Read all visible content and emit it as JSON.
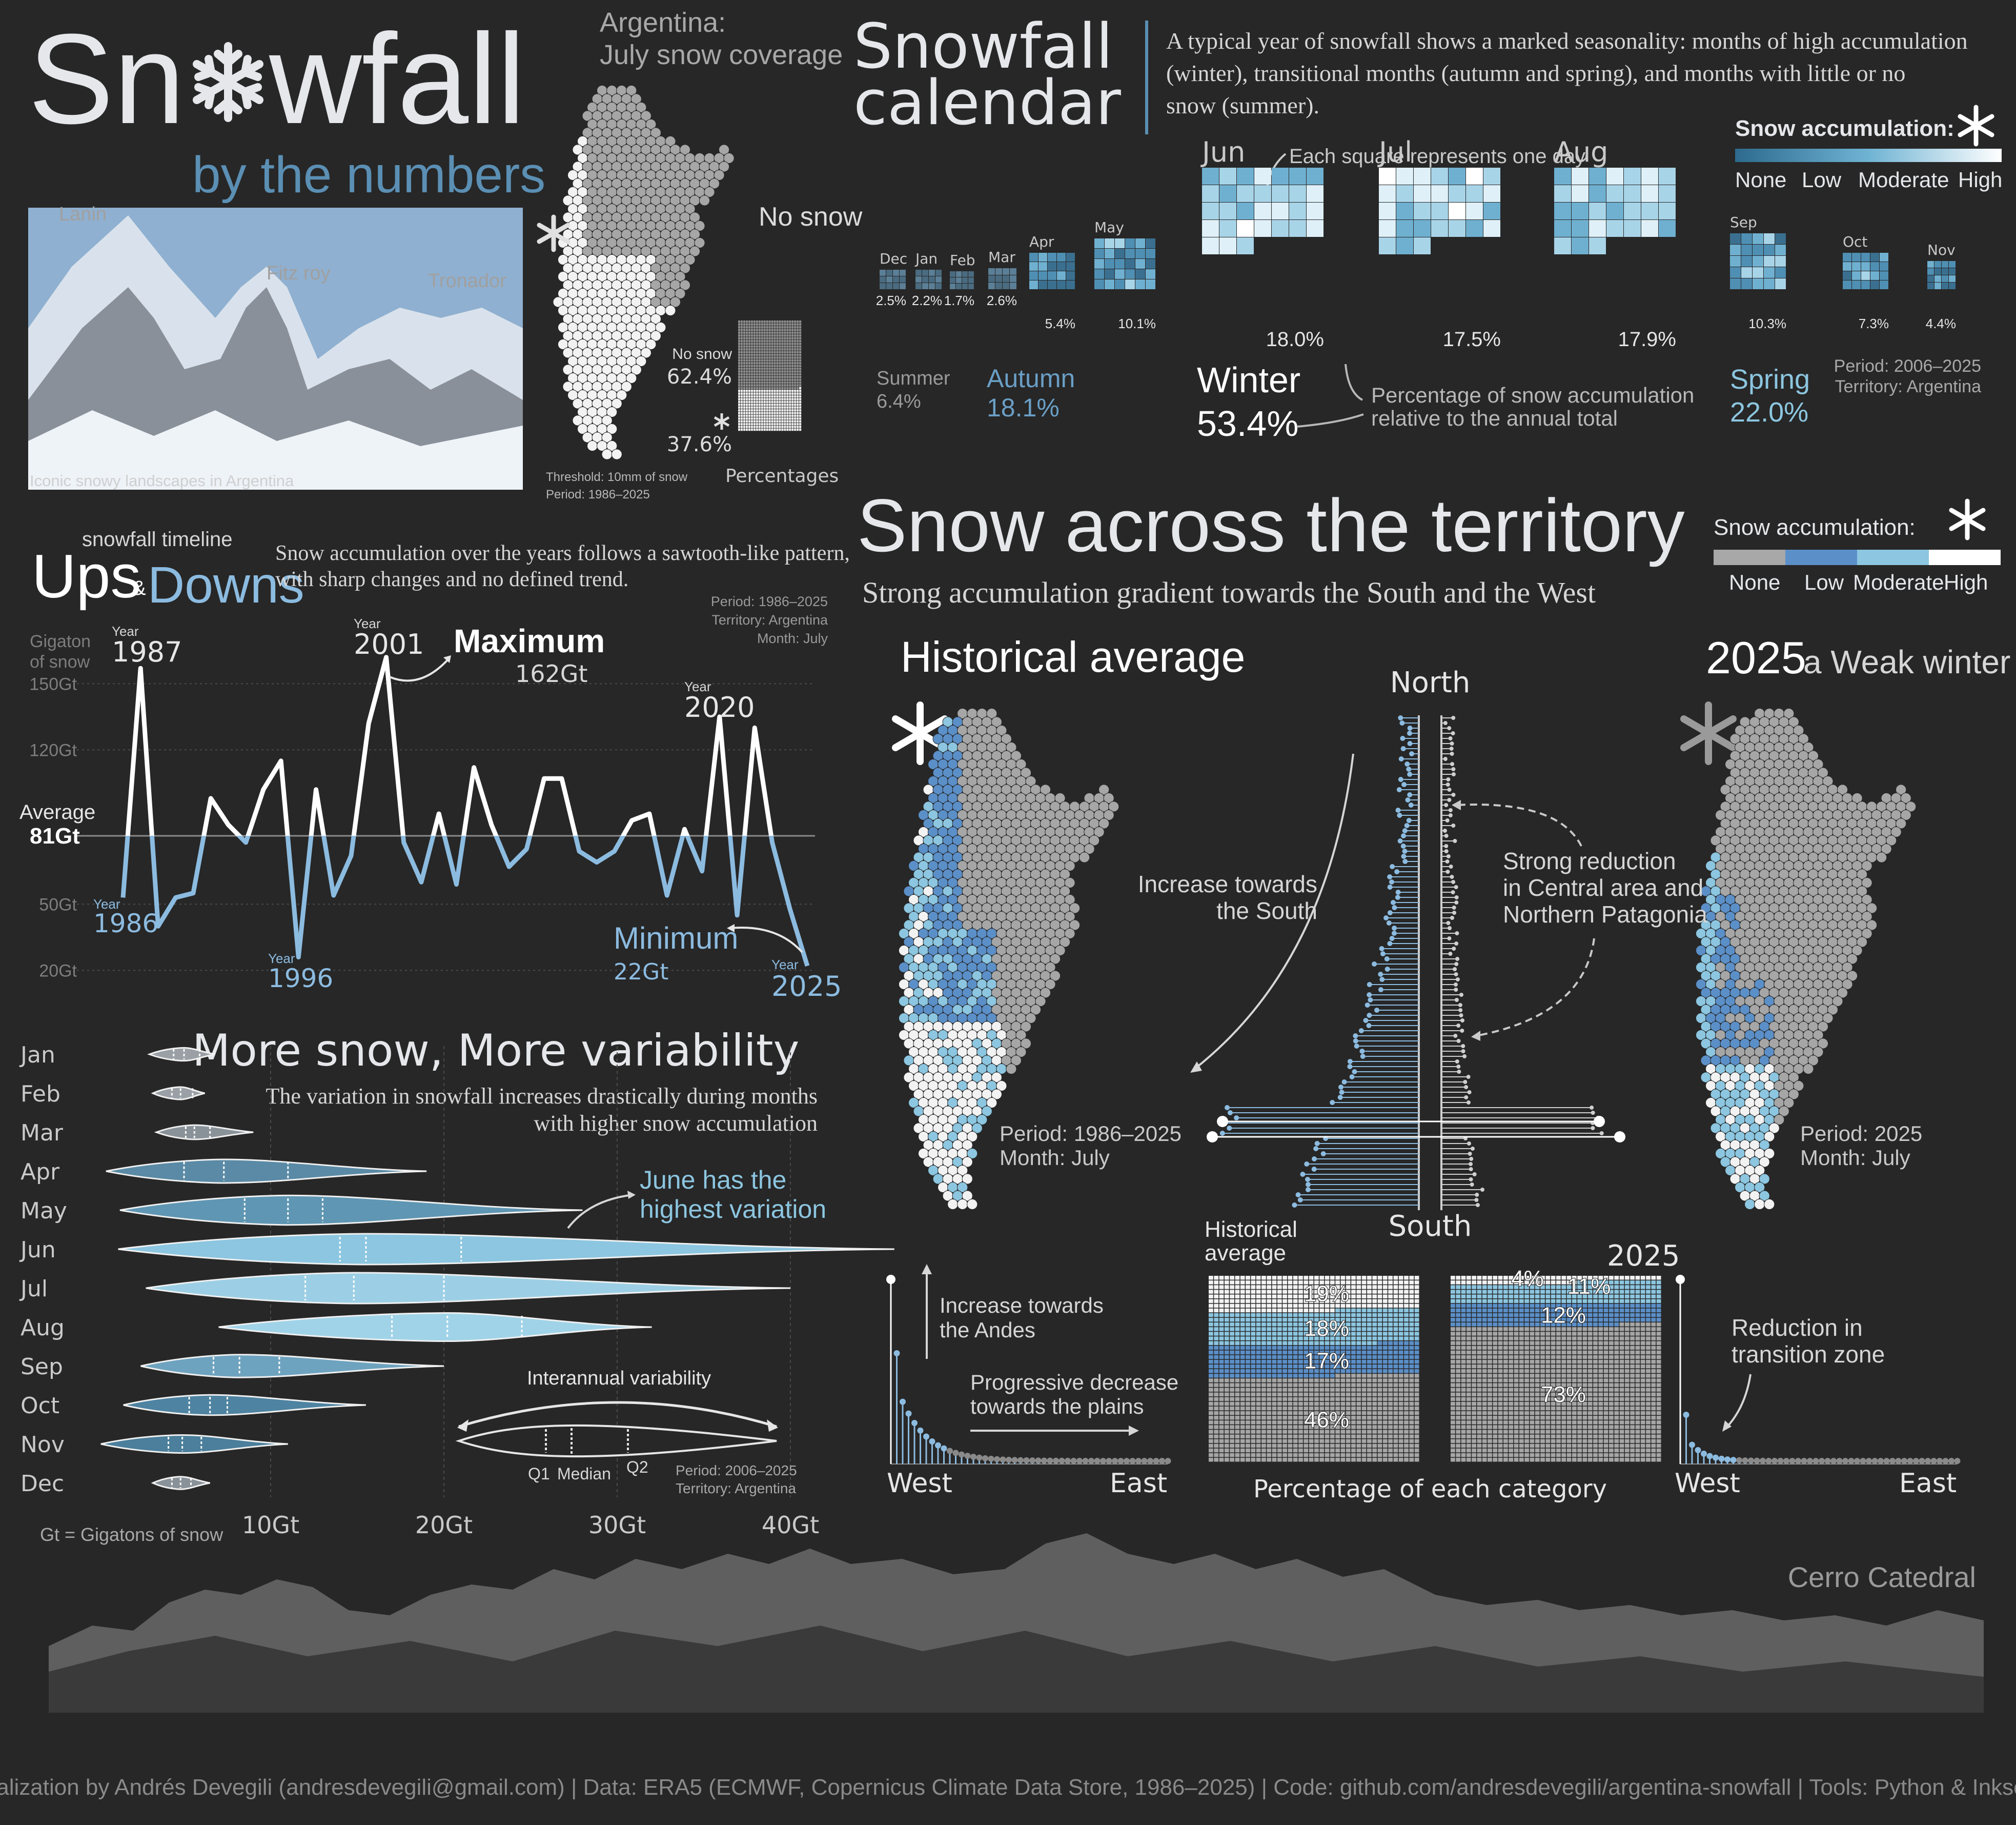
{
  "header": {
    "title_pre": "Sn",
    "title_post": "wfall",
    "subtitle": "by the numbers",
    "photo_labels": [
      "Lanin",
      "Fitz roy",
      "Tronador"
    ],
    "photo_caption": "Iconic snowy landscapes in Argentina"
  },
  "coverage": {
    "title_line1": "Argentina:",
    "title_line2": "July snow coverage",
    "no_snow_label": "No snow",
    "waffle_no_snow_label": "No snow",
    "no_snow_pct": "62.4%",
    "snow_pct": "37.6%",
    "waffle_caption": "Percentages",
    "threshold": "Threshold: 10mm of snow",
    "period": "Period: 1986–2025",
    "values": {
      "no_snow": 62.4,
      "snow": 37.6
    }
  },
  "calendar": {
    "title_line1": "Snowfall",
    "title_line2": "calendar",
    "description": [
      "A typical year of snowfall shows a marked seasonality: months of high accumulation",
      "(winter), transitional months (autumn and spring), and months with little or no",
      "snow (summer)."
    ],
    "legend_title": "Snow accumulation:",
    "legend_labels": [
      "None",
      "Low",
      "Moderate",
      "High"
    ],
    "square_note": "Each square represents one day",
    "months": [
      {
        "label": "Dec",
        "pct": "2.5%"
      },
      {
        "label": "Jan",
        "pct": "2.2%"
      },
      {
        "label": "Feb",
        "pct": "1.7%"
      },
      {
        "label": "Mar",
        "pct": "2.6%"
      },
      {
        "label": "Apr",
        "pct": "5.4%"
      },
      {
        "label": "May",
        "pct": "10.1%"
      },
      {
        "label": "Jun",
        "pct": "18.0%"
      },
      {
        "label": "Jul",
        "pct": "17.5%"
      },
      {
        "label": "Aug",
        "pct": "17.9%"
      },
      {
        "label": "Sep",
        "pct": "10.3%"
      },
      {
        "label": "Oct",
        "pct": "7.3%"
      },
      {
        "label": "Nov",
        "pct": "4.4%"
      }
    ],
    "seasons": [
      {
        "label": "Summer",
        "pct": "6.4%"
      },
      {
        "label": "Autumn",
        "pct": "18.1%"
      },
      {
        "label": "Winter",
        "pct": "53.4%"
      },
      {
        "label": "Spring",
        "pct": "22.0%"
      }
    ],
    "pct_note_line1": "Percentage of snow accumulation",
    "pct_note_line2": "relative to the annual total",
    "period": "Period: 2006–2025",
    "territory": "Territory: Argentina",
    "colors": {
      "none": "#b0b0b0",
      "low": "#3d7ea3",
      "moderate": "#8cc6e0",
      "high": "#ffffff"
    }
  },
  "timeline": {
    "kicker": "snowfall timeline",
    "title_a": "Ups",
    "amp": "&",
    "title_b": "Downs",
    "description": [
      "Snow accumulation over the years follows a sawtooth-like pattern,",
      "with sharp changes and no defined trend."
    ],
    "period": "Period: 1986–2025",
    "territory": "Territory: Argentina",
    "month": "Month: July",
    "ylabel_line1": "Gigaton",
    "ylabel_line2": "of snow",
    "ticks": [
      "150Gt",
      "120Gt",
      "50Gt",
      "20Gt"
    ],
    "average_label": "Average",
    "average_value": "81Gt",
    "year_word": "Year",
    "max_label": "Maximum",
    "max_value": "162Gt",
    "min_label": "Minimum",
    "min_value": "22Gt",
    "year_labels": [
      "1987",
      "2001",
      "2020",
      "1986",
      "1996",
      "2025"
    ]
  },
  "variability": {
    "title": "More snow, More variability",
    "description": [
      "The variation in snowfall increases drastically during months",
      "with higher snow accumulation"
    ],
    "callout_line1": "June has the",
    "callout_line2": "highest variation",
    "legend_title": "Interannual variability",
    "legend_q1": "Q1",
    "legend_median": "Median",
    "legend_q2": "Q2",
    "period": "Period: 2006–2025",
    "territory": "Territory: Argentina",
    "xticks": [
      "10Gt",
      "20Gt",
      "30Gt",
      "40Gt"
    ],
    "unit_note": "Gt = Gigatons of snow"
  },
  "territory": {
    "title": "Snow across the territory",
    "subtitle": "Strong accumulation gradient towards the South and the West",
    "legend_title": "Snow accumulation:",
    "legend_labels": [
      "None",
      "Low",
      "Moderate",
      "High"
    ],
    "hist_title": "Historical average",
    "y2025_a": "2025",
    "y2025_b": "a Weak winter",
    "north": "North",
    "south": "South",
    "increase_south_1": "Increase towards",
    "increase_south_2": "the South",
    "reduction_1": "Strong reduction",
    "reduction_2": "in Central area and",
    "reduction_3": "Northern Patagonia",
    "hist_period": "Period: 1986–2025",
    "hist_month": "Month: July",
    "p25_period": "Period: 2025",
    "p25_month": "Month: July",
    "andes_1": "Increase towards",
    "andes_2": "the Andes",
    "plains_1": "Progressive decrease",
    "plains_2": "towards the plains",
    "west": "West",
    "east": "East",
    "waffle_hist_1": "Historical",
    "waffle_hist_2": "average",
    "waffle_2025": "2025",
    "waffle_caption": "Percentage of each category",
    "transition_1": "Reduction in",
    "transition_2": "transition zone"
  },
  "chart_data": [
    {
      "type": "line",
      "title": "Ups & Downs",
      "ylabel": "Gigaton of snow",
      "x": [
        1986,
        1987,
        1988,
        1989,
        1990,
        1991,
        1992,
        1993,
        1994,
        1995,
        1996,
        1997,
        1998,
        1999,
        2000,
        2001,
        2002,
        2003,
        2004,
        2005,
        2006,
        2007,
        2008,
        2009,
        2010,
        2011,
        2012,
        2013,
        2014,
        2015,
        2016,
        2017,
        2018,
        2019,
        2020,
        2021,
        2022,
        2023,
        2024,
        2025
      ],
      "values": [
        53,
        157,
        40,
        53,
        55,
        98,
        86,
        78,
        102,
        115,
        26,
        102,
        54,
        72,
        132,
        162,
        78,
        60,
        91,
        59,
        112,
        86,
        67,
        75,
        107,
        107,
        74,
        69,
        74,
        88,
        91,
        54,
        84,
        65,
        135,
        45,
        130,
        78,
        48,
        22
      ],
      "average": 81,
      "ylim": [
        20,
        162
      ]
    },
    {
      "type": "table",
      "title": "More snow, More variability",
      "months": [
        "Jan",
        "Feb",
        "Mar",
        "Apr",
        "May",
        "Jun",
        "Jul",
        "Aug",
        "Sep",
        "Oct",
        "Nov",
        "Dec"
      ],
      "min": [
        3.0,
        3.2,
        3.4,
        0.5,
        1.3,
        1.2,
        2.8,
        7.0,
        2.5,
        1.5,
        0.2,
        3.2
      ],
      "q1": [
        4.4,
        4.3,
        5.1,
        5.0,
        8.5,
        14.0,
        12.0,
        17.0,
        6.7,
        5.3,
        4.1,
        4.3
      ],
      "median": [
        5.0,
        4.8,
        5.6,
        7.3,
        11.0,
        15.5,
        14.8,
        20.2,
        8.2,
        6.5,
        4.9,
        4.8
      ],
      "q2": [
        5.9,
        5.5,
        6.5,
        11.0,
        13.0,
        21.0,
        20.0,
        24.5,
        10.5,
        7.5,
        6.0,
        5.4
      ],
      "max": [
        6.8,
        6.2,
        9.0,
        19.0,
        28.0,
        46.0,
        40.0,
        32.0,
        20.0,
        15.5,
        11.0,
        6.5
      ],
      "xticks": [
        10,
        20,
        30,
        40
      ]
    },
    {
      "type": "table",
      "title": "Percentage of each category",
      "categories": [
        "High",
        "Moderate",
        "Low",
        "None"
      ],
      "series": [
        {
          "name": "Historical average",
          "values": [
            19,
            18,
            17,
            46
          ]
        },
        {
          "name": "2025",
          "values": [
            4,
            11,
            12,
            73
          ]
        }
      ]
    },
    {
      "type": "bar",
      "title": "Snowfall calendar",
      "categories": [
        "Dec",
        "Jan",
        "Feb",
        "Mar",
        "Apr",
        "May",
        "Jun",
        "Jul",
        "Aug",
        "Sep",
        "Oct",
        "Nov"
      ],
      "values": [
        2.5,
        2.2,
        1.7,
        2.6,
        5.4,
        10.1,
        18.0,
        17.5,
        17.9,
        10.3,
        7.3,
        4.4
      ]
    }
  ],
  "footer": {
    "place_label": "Cerro Catedral",
    "credits": "Visualization by Andrés Devegili (andresdevegili@gmail.com) | Data: ERA5 (ECMWF, Copernicus Climate Data Store, 1986–2025) | Code: github.com/andresdevegili/argentina-snowfall | Tools: Python & Inkscape"
  }
}
